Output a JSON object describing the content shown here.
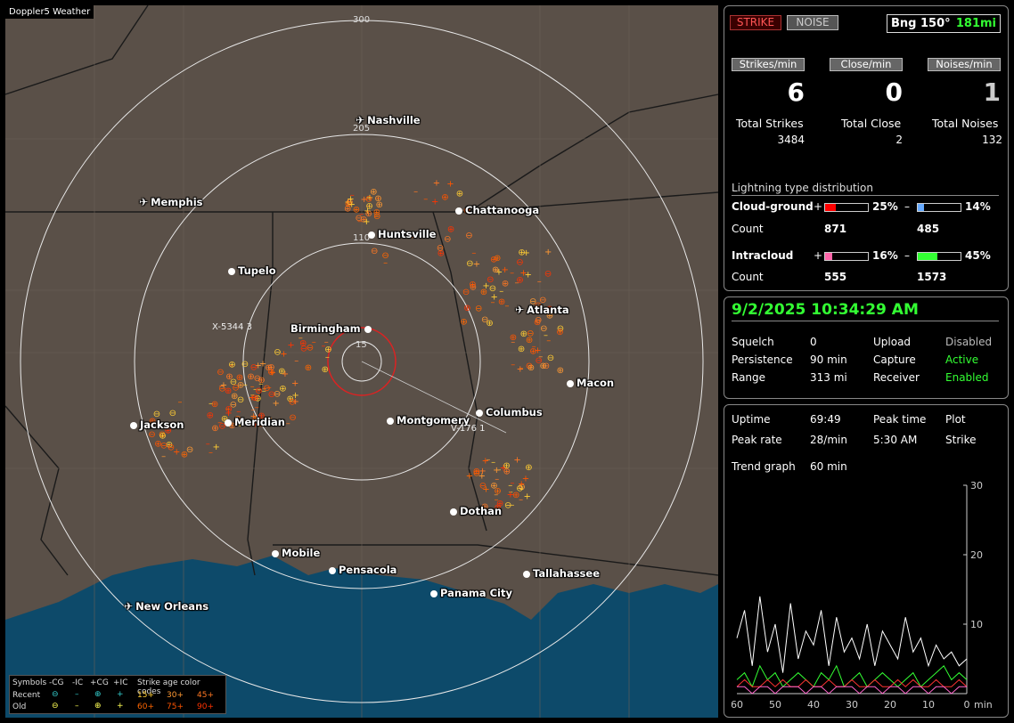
{
  "map": {
    "title": "Doppler5 Weather",
    "ring_labels": [
      "300",
      "205",
      "110",
      "15"
    ],
    "cities": [
      {
        "name": "Nashville",
        "icon": "airport-icon"
      },
      {
        "name": "Memphis",
        "icon": "airport-icon"
      },
      {
        "name": "Chattanooga",
        "icon": "dot-icon"
      },
      {
        "name": "Huntsville",
        "icon": "dot-icon"
      },
      {
        "name": "Tupelo",
        "icon": "dot-icon"
      },
      {
        "name": "Atlanta",
        "icon": "airport-icon"
      },
      {
        "name": "Birmingham",
        "icon": "dot-icon"
      },
      {
        "name": "Macon",
        "icon": "dot-icon"
      },
      {
        "name": "Jackson",
        "icon": "dot-icon"
      },
      {
        "name": "Meridian",
        "icon": "dot-icon"
      },
      {
        "name": "Montgomery",
        "icon": "dot-icon"
      },
      {
        "name": "Columbus",
        "icon": "dot-icon"
      },
      {
        "name": "Dothan",
        "icon": "dot-icon"
      },
      {
        "name": "Mobile",
        "icon": "dot-icon"
      },
      {
        "name": "Pensacola",
        "icon": "dot-icon"
      },
      {
        "name": "Tallahassee",
        "icon": "dot-icon"
      },
      {
        "name": "Panama City",
        "icon": "dot-icon"
      },
      {
        "name": "New Orleans",
        "icon": "airport-icon"
      }
    ],
    "strike_labels": [
      "X-5344 3",
      "V-176 1"
    ],
    "legend": {
      "symbols_label": "Symbols",
      "headers": [
        "-CG",
        "-IC",
        "+CG",
        "+IC"
      ],
      "age_title": "Strike age color codes",
      "rows": [
        {
          "label": "Recent",
          "ages": [
            "15+",
            "30+",
            "45+"
          ]
        },
        {
          "label": "Old",
          "ages": [
            "60+",
            "75+",
            "90+"
          ]
        }
      ],
      "age_colors": [
        "#ffcc33",
        "#ff9933",
        "#ff7722",
        "#ff6600",
        "#ff5500",
        "#ff3300"
      ]
    }
  },
  "status": {
    "strike_btn": "STRIKE",
    "noise_btn": "NOISE",
    "bearing": "Bng 150°",
    "range": "181mi",
    "headers": [
      "Strikes/min",
      "Close/min",
      "Noises/min"
    ],
    "rates": [
      "6",
      "0",
      "1"
    ],
    "totals_labels": [
      "Total Strikes",
      "Total Close",
      "Total Noises"
    ],
    "totals": [
      "3484",
      "2",
      "132"
    ],
    "dist_title": "Lightning type distribution",
    "cloud_ground": {
      "label": "Cloud-ground",
      "pos_pct": "25%",
      "neg_pct": "14%",
      "pos_frac": 0.25,
      "neg_frac": 0.14,
      "count_label": "Count",
      "pos_count": "871",
      "neg_count": "485"
    },
    "intracloud": {
      "label": "Intracloud",
      "pos_pct": "16%",
      "neg_pct": "45%",
      "pos_frac": 0.16,
      "neg_frac": 0.45,
      "count_label": "Count",
      "pos_count": "555",
      "neg_count": "1573"
    },
    "plus": "+",
    "minus": "–",
    "colors": {
      "cg_pos": "#ff0000",
      "cg_neg": "#66aaff",
      "ic_pos": "#ff66aa",
      "ic_neg": "#33ff33"
    }
  },
  "settings": {
    "datetime": "9/2/2025 10:34:29 AM",
    "squelch_label": "Squelch",
    "squelch": "0",
    "persistence_label": "Persistence",
    "persistence": "90 min",
    "range_label": "Range",
    "range": "313 mi",
    "upload_label": "Upload",
    "upload": "Disabled",
    "capture_label": "Capture",
    "capture": "Active",
    "receiver_label": "Receiver",
    "receiver": "Enabled"
  },
  "trend": {
    "uptime_label": "Uptime",
    "uptime": "69:49",
    "peak_time_label": "Peak time",
    "peak_time": "5:30 AM",
    "plot_label": "Plot",
    "plot": "Strike",
    "peak_rate_label": "Peak rate",
    "peak_rate": "28/min",
    "graph_label": "Trend graph",
    "graph_span": "60 min",
    "x_ticks": [
      "60",
      "50",
      "40",
      "30",
      "20",
      "10",
      "0"
    ],
    "x_unit": "min",
    "y_ticks": [
      "30",
      "20",
      "10"
    ]
  },
  "chart_data": {
    "type": "line",
    "x": [
      60,
      58,
      56,
      54,
      52,
      50,
      48,
      46,
      44,
      42,
      40,
      38,
      36,
      34,
      32,
      30,
      28,
      26,
      24,
      22,
      20,
      18,
      16,
      14,
      12,
      10,
      8,
      6,
      4,
      2,
      0
    ],
    "ylim": [
      0,
      30
    ],
    "xlabel": "min",
    "series": [
      {
        "color": "#ffffff",
        "values": [
          8,
          12,
          4,
          14,
          6,
          10,
          3,
          13,
          5,
          9,
          7,
          12,
          4,
          11,
          6,
          8,
          5,
          10,
          4,
          9,
          7,
          5,
          11,
          6,
          8,
          4,
          7,
          5,
          6,
          4,
          5
        ]
      },
      {
        "color": "#33ff33",
        "values": [
          2,
          3,
          1,
          4,
          2,
          3,
          1,
          2,
          3,
          2,
          1,
          3,
          2,
          4,
          1,
          2,
          3,
          1,
          2,
          3,
          2,
          1,
          2,
          3,
          1,
          2,
          3,
          4,
          2,
          3,
          2
        ]
      },
      {
        "color": "#ff3333",
        "values": [
          1,
          2,
          1,
          1,
          2,
          1,
          2,
          1,
          1,
          2,
          1,
          1,
          2,
          1,
          1,
          2,
          1,
          1,
          2,
          1,
          1,
          2,
          1,
          2,
          1,
          1,
          2,
          1,
          1,
          2,
          1
        ]
      },
      {
        "color": "#ff66cc",
        "values": [
          1,
          1,
          0,
          1,
          1,
          0,
          1,
          1,
          1,
          0,
          1,
          1,
          0,
          1,
          1,
          1,
          0,
          1,
          1,
          0,
          1,
          1,
          0,
          1,
          1,
          0,
          1,
          1,
          0,
          1,
          1
        ]
      }
    ]
  }
}
